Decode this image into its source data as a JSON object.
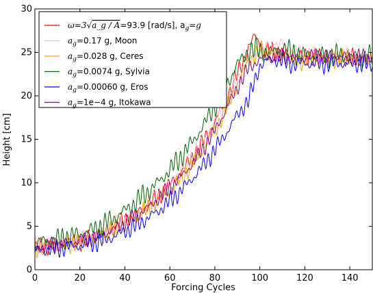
{
  "chart_data": {
    "type": "line",
    "title": "",
    "xlabel": "Forcing Cycles",
    "ylabel": "Height [cm]",
    "xlim": [
      0,
      150
    ],
    "ylim": [
      0,
      30
    ],
    "xticks": [
      "0",
      "20",
      "40",
      "60",
      "80",
      "100",
      "120",
      "140"
    ],
    "yticks": [
      "0",
      "5",
      "10",
      "15",
      "20",
      "25",
      "30"
    ],
    "grid": false,
    "legend_position": "top-left",
    "series": [
      {
        "name": "ω=3√(a_g/A)=93.9 [rad/s], a_g=g",
        "legend": {
          "pre": "ω=3√",
          "over": "a_g / A",
          "post": "=93.9 [rad/s], a",
          "postsub": "g",
          "tail": "=g"
        },
        "color": "#ff0000",
        "x": [
          0,
          5,
          10,
          15,
          20,
          25,
          30,
          35,
          40,
          45,
          50,
          55,
          60,
          65,
          70,
          75,
          80,
          85,
          90,
          95,
          98,
          100,
          102,
          105,
          110,
          115,
          120,
          125,
          130,
          135,
          140,
          145,
          150
        ],
        "y": [
          2.5,
          2.8,
          2.9,
          3.1,
          3.3,
          3.6,
          4.1,
          4.8,
          5.7,
          6.5,
          7.4,
          8.5,
          9.8,
          11.2,
          12.9,
          14.8,
          17.0,
          19.5,
          22.5,
          25.5,
          27.0,
          26.0,
          25.0,
          25.2,
          24.8,
          24.5,
          24.6,
          24.5,
          24.4,
          24.3,
          24.4,
          24.3,
          24.2
        ],
        "amp": 0.9
      },
      {
        "name": "a_g=0.17 g, Moon",
        "legend": {
          "pre": "a",
          "sub": "g",
          "post": "=0.17 g, Moon"
        },
        "color": "#ffc0cb",
        "x": [
          0,
          5,
          10,
          15,
          20,
          25,
          30,
          35,
          40,
          45,
          50,
          55,
          60,
          65,
          70,
          75,
          80,
          85,
          90,
          95,
          100,
          105,
          110,
          115,
          120,
          125,
          130,
          135,
          140,
          145,
          150
        ],
        "y": [
          2.6,
          2.9,
          3.0,
          3.2,
          3.4,
          3.8,
          4.3,
          5.0,
          5.8,
          6.6,
          7.5,
          8.6,
          9.9,
          11.4,
          13.0,
          14.9,
          17.0,
          19.4,
          22.0,
          24.2,
          25.0,
          25.4,
          26.0,
          25.2,
          24.6,
          24.8,
          24.6,
          24.6,
          24.5,
          24.4,
          24.3
        ],
        "amp": 0.9
      },
      {
        "name": "a_g=0.028 g, Ceres",
        "legend": {
          "pre": "a",
          "sub": "g",
          "post": "=0.028 g, Ceres"
        },
        "color": "#ffa500",
        "x": [
          0,
          5,
          10,
          15,
          20,
          25,
          30,
          35,
          40,
          45,
          50,
          55,
          60,
          65,
          70,
          75,
          80,
          85,
          90,
          95,
          100,
          105,
          110,
          115,
          120,
          125,
          130,
          135,
          140,
          145,
          150
        ],
        "y": [
          2.4,
          2.6,
          2.8,
          3.0,
          3.2,
          3.5,
          4.0,
          4.6,
          5.3,
          6.1,
          7.0,
          8.0,
          9.1,
          10.5,
          12.1,
          13.9,
          16.0,
          18.5,
          21.3,
          24.0,
          25.2,
          25.0,
          24.8,
          24.2,
          24.0,
          24.4,
          24.2,
          24.3,
          24.4,
          24.2,
          24.3
        ],
        "amp": 0.9
      },
      {
        "name": "a_g=0.0074 g, Sylvia",
        "legend": {
          "pre": "a",
          "sub": "g",
          "post": "=0.0074 g, Sylvia"
        },
        "color": "#006400",
        "x": [
          0,
          5,
          10,
          15,
          20,
          25,
          30,
          35,
          40,
          45,
          50,
          55,
          60,
          65,
          70,
          75,
          80,
          85,
          90,
          95,
          100,
          105,
          110,
          115,
          120,
          125,
          130,
          135,
          140,
          145,
          150
        ],
        "y": [
          3.0,
          3.3,
          3.5,
          3.8,
          4.1,
          4.5,
          5.1,
          5.9,
          6.8,
          7.8,
          8.9,
          10.1,
          11.5,
          13.0,
          14.7,
          16.6,
          18.8,
          21.2,
          23.6,
          25.2,
          25.3,
          25.0,
          25.4,
          25.0,
          24.6,
          24.8,
          24.5,
          24.7,
          24.5,
          24.4,
          24.5
        ],
        "amp": 1.1
      },
      {
        "name": "a_g=0.00060 g, Eros",
        "legend": {
          "pre": "a",
          "sub": "g",
          "post": "=0.00060 g, Eros"
        },
        "color": "#0000ff",
        "x": [
          0,
          5,
          10,
          15,
          20,
          25,
          30,
          35,
          40,
          45,
          50,
          55,
          60,
          65,
          70,
          75,
          80,
          85,
          90,
          95,
          100,
          105,
          110,
          115,
          120,
          125,
          130,
          135,
          140,
          145,
          150
        ],
        "y": [
          2.2,
          2.3,
          2.4,
          2.6,
          2.8,
          3.0,
          3.3,
          3.8,
          4.4,
          5.1,
          5.9,
          6.8,
          7.9,
          9.1,
          10.5,
          12.0,
          13.8,
          15.7,
          17.8,
          19.5,
          23.5,
          24.2,
          24.0,
          23.6,
          23.8,
          23.6,
          23.7,
          23.8,
          23.6,
          23.7,
          23.6
        ],
        "amp": 0.9
      },
      {
        "name": "a_g=1e−4 g, Itokawa",
        "legend": {
          "pre": "a",
          "sub": "g",
          "post": "=1e−4 g, Itokawa"
        },
        "color": "#800080",
        "x": [
          0,
          5,
          10,
          15,
          20,
          25,
          30,
          35,
          40,
          45,
          50,
          55,
          60,
          65,
          70,
          75,
          80,
          85,
          90,
          95,
          100,
          105,
          110,
          115,
          120,
          125,
          130,
          135,
          140,
          145,
          150
        ],
        "y": [
          2.5,
          2.7,
          2.9,
          3.1,
          3.3,
          3.6,
          4.0,
          4.6,
          5.4,
          6.2,
          7.1,
          8.2,
          9.4,
          10.7,
          12.2,
          14.0,
          16.0,
          18.4,
          21.0,
          23.2,
          24.2,
          24.5,
          24.6,
          24.3,
          24.4,
          24.6,
          24.5,
          24.6,
          24.4,
          24.5,
          24.5
        ],
        "amp": 0.8
      }
    ]
  }
}
